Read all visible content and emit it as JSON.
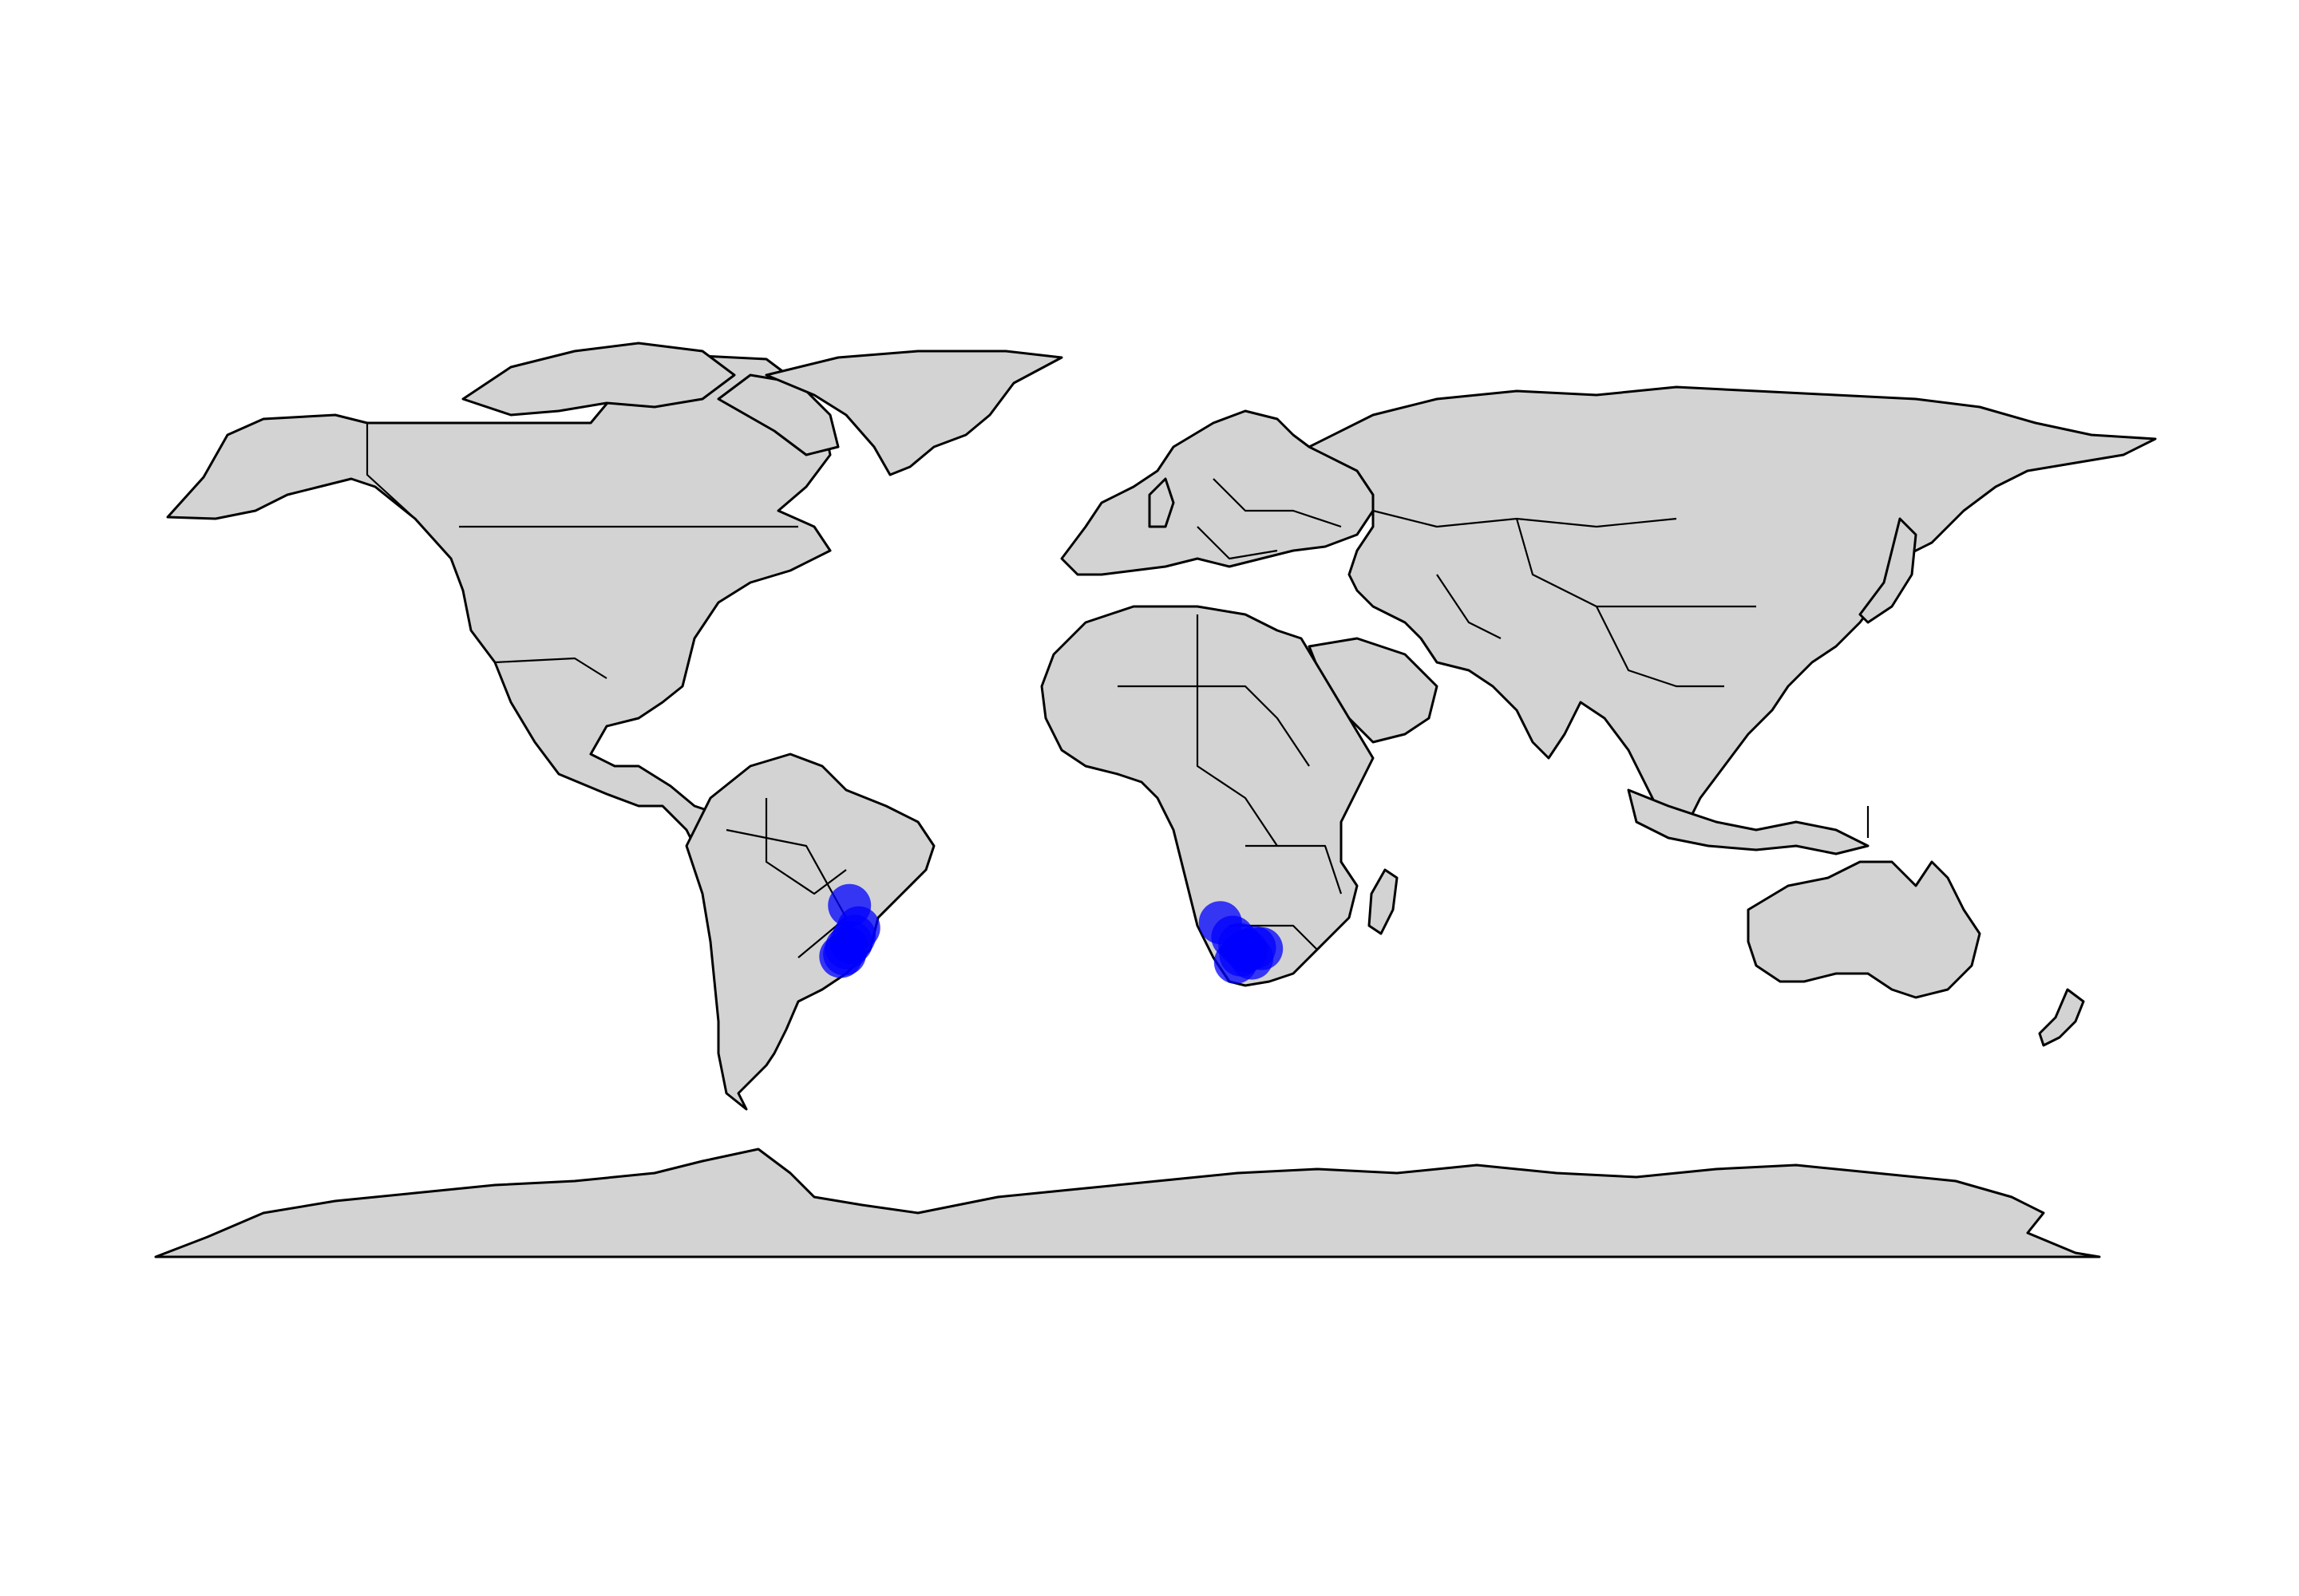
{
  "map": {
    "projection": "equirectangular",
    "extent": {
      "lon": [
        -180,
        180
      ],
      "lat": [
        -90,
        84
      ]
    },
    "land_fill": "#d3d3d3",
    "border_color": "#000000",
    "background": "#ffffff"
  },
  "occurrences": {
    "color": "#0000ff",
    "opacity": 0.75,
    "points": [
      {
        "region": "south-america",
        "lon": -51.5,
        "lat": -22.5
      },
      {
        "region": "south-america",
        "lon": -49.8,
        "lat": -26.8
      },
      {
        "region": "south-america",
        "lon": -50.6,
        "lat": -28.4
      },
      {
        "region": "south-america",
        "lon": -51.2,
        "lat": -29.6
      },
      {
        "region": "south-america",
        "lon": -52.4,
        "lat": -31.8
      },
      {
        "region": "south-america",
        "lon": -53.1,
        "lat": -32.3
      },
      {
        "region": "south-america",
        "lon": -52.0,
        "lat": -30.6
      },
      {
        "region": "africa",
        "lon": 17.2,
        "lat": -25.8
      },
      {
        "region": "africa",
        "lon": 19.5,
        "lat": -28.6
      },
      {
        "region": "africa",
        "lon": 20.8,
        "lat": -30.0
      },
      {
        "region": "africa",
        "lon": 22.0,
        "lat": -31.2
      },
      {
        "region": "africa",
        "lon": 23.5,
        "lat": -30.6
      },
      {
        "region": "africa",
        "lon": 24.8,
        "lat": -30.8
      },
      {
        "region": "africa",
        "lon": 21.0,
        "lat": -32.0
      },
      {
        "region": "africa",
        "lon": 20.0,
        "lat": -33.4
      },
      {
        "region": "africa",
        "lon": 23.0,
        "lat": -32.6
      }
    ]
  }
}
